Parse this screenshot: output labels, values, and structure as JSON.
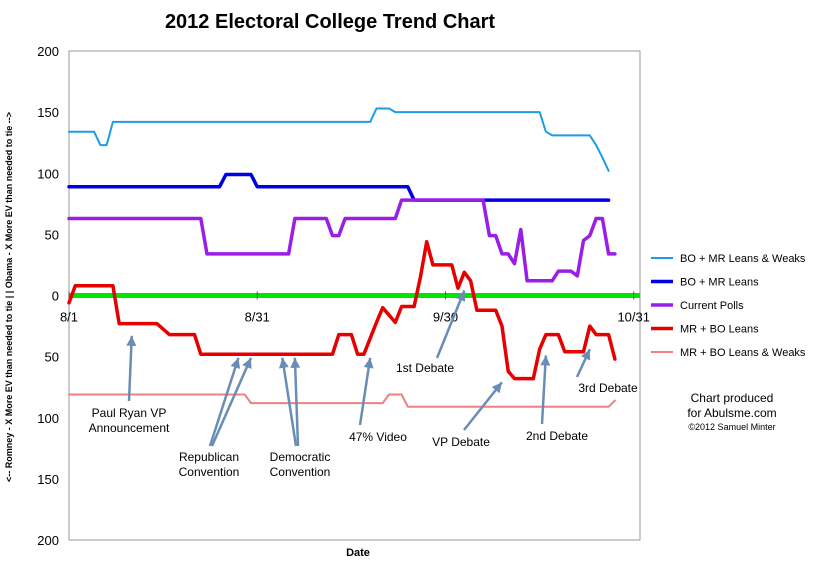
{
  "chart_data": {
    "type": "line",
    "title": "2012 Electoral College Trend Chart",
    "xlabel": "Date",
    "ylabel": "<-- Romney - X More EV than needed to tie | | Obama - X More EV than needed to tie -->",
    "x_ticks": [
      {
        "day": 0,
        "label": "8/1"
      },
      {
        "day": 30,
        "label": "8/31"
      },
      {
        "day": 60,
        "label": "9/30"
      },
      {
        "day": 90,
        "label": "10/31"
      }
    ],
    "xlim": [
      0,
      91
    ],
    "ylim": [
      -200,
      200
    ],
    "y_ticks": [
      {
        "value": 200,
        "label": "200"
      },
      {
        "value": 150,
        "label": "150"
      },
      {
        "value": 100,
        "label": "100"
      },
      {
        "value": 50,
        "label": "50"
      },
      {
        "value": 0,
        "label": "0"
      },
      {
        "value": -50,
        "label": "50"
      },
      {
        "value": -100,
        "label": "100"
      },
      {
        "value": -150,
        "label": "150"
      },
      {
        "value": -200,
        "label": "200"
      }
    ],
    "zero_line_color": "#00e600",
    "legend_position": "right",
    "series": [
      {
        "name": "BO + MR Leans & Weaks",
        "color": "#1e9be6",
        "points": [
          [
            0,
            134
          ],
          [
            4,
            134
          ],
          [
            5,
            123
          ],
          [
            6,
            123
          ],
          [
            7,
            142
          ],
          [
            48,
            142
          ],
          [
            49,
            153
          ],
          [
            51,
            153
          ],
          [
            52,
            150
          ],
          [
            75,
            150
          ],
          [
            76,
            134
          ],
          [
            77,
            131
          ],
          [
            83,
            131
          ],
          [
            84,
            123
          ],
          [
            85,
            113
          ],
          [
            86,
            102
          ]
        ]
      },
      {
        "name": "BO + MR Leans",
        "color": "#0000e6",
        "points": [
          [
            0,
            89
          ],
          [
            24,
            89
          ],
          [
            25,
            99
          ],
          [
            29,
            99
          ],
          [
            30,
            89
          ],
          [
            54,
            89
          ],
          [
            55,
            78
          ],
          [
            86,
            78
          ]
        ]
      },
      {
        "name": "Current Polls",
        "color": "#9b1ee6",
        "points": [
          [
            0,
            63
          ],
          [
            21,
            63
          ],
          [
            22,
            34
          ],
          [
            35,
            34
          ],
          [
            36,
            63
          ],
          [
            41,
            63
          ],
          [
            42,
            49
          ],
          [
            43,
            49
          ],
          [
            44,
            63
          ],
          [
            52,
            63
          ],
          [
            53,
            78
          ],
          [
            66,
            78
          ],
          [
            67,
            49
          ],
          [
            68,
            49
          ],
          [
            69,
            34
          ],
          [
            70,
            34
          ],
          [
            71,
            26
          ],
          [
            72,
            54
          ],
          [
            73,
            12
          ],
          [
            77,
            12
          ],
          [
            78,
            20
          ],
          [
            80,
            20
          ],
          [
            81,
            16
          ],
          [
            82,
            45
          ],
          [
            83,
            49
          ],
          [
            84,
            63
          ],
          [
            85,
            63
          ],
          [
            86,
            34
          ],
          [
            87,
            34
          ]
        ]
      },
      {
        "name": "MR + BO Leans",
        "color": "#e60000",
        "points": [
          [
            0,
            -6
          ],
          [
            1,
            8
          ],
          [
            7,
            8
          ],
          [
            8,
            -23
          ],
          [
            14,
            -23
          ],
          [
            16,
            -32
          ],
          [
            20,
            -32
          ],
          [
            21,
            -48
          ],
          [
            42,
            -48
          ],
          [
            43,
            -32
          ],
          [
            45,
            -32
          ],
          [
            46,
            -48
          ],
          [
            47,
            -48
          ],
          [
            49,
            -22
          ],
          [
            50,
            -10
          ],
          [
            52,
            -22
          ],
          [
            53,
            -9
          ],
          [
            55,
            -9
          ],
          [
            56,
            15
          ],
          [
            57,
            44
          ],
          [
            58,
            25
          ],
          [
            61,
            25
          ],
          [
            62,
            6
          ],
          [
            63,
            19
          ],
          [
            64,
            12
          ],
          [
            65,
            -12
          ],
          [
            68,
            -12
          ],
          [
            69,
            -25
          ],
          [
            70,
            -62
          ],
          [
            71,
            -68
          ],
          [
            74,
            -68
          ],
          [
            75,
            -44
          ],
          [
            76,
            -32
          ],
          [
            78,
            -32
          ],
          [
            79,
            -46
          ],
          [
            82,
            -46
          ],
          [
            83,
            -25
          ],
          [
            84,
            -32
          ],
          [
            86,
            -32
          ],
          [
            87,
            -52
          ]
        ]
      },
      {
        "name": "MR + BO Leans & Weaks",
        "color": "#f08080",
        "points": [
          [
            0,
            -81
          ],
          [
            28,
            -81
          ],
          [
            29,
            -88
          ],
          [
            50,
            -88
          ],
          [
            51,
            -81
          ],
          [
            53,
            -81
          ],
          [
            54,
            -91
          ],
          [
            86,
            -91
          ],
          [
            87,
            -86
          ]
        ]
      }
    ],
    "annotations": [
      {
        "label_lines": [
          "Paul Ryan VP",
          "Announcement"
        ],
        "arrows_to": [
          [
            10,
            -33
          ]
        ]
      },
      {
        "label_lines": [
          "Republican",
          "Convention"
        ],
        "arrows_to": [
          [
            27,
            -51
          ],
          [
            29,
            -51
          ]
        ]
      },
      {
        "label_lines": [
          "Democratic",
          "Convention"
        ],
        "arrows_to": [
          [
            34,
            -51
          ],
          [
            36,
            -51
          ]
        ]
      },
      {
        "label_lines": [
          "47% Video"
        ],
        "arrows_to": [
          [
            48,
            -51
          ]
        ]
      },
      {
        "label_lines": [
          "1st Debate"
        ],
        "arrows_to": [
          [
            63,
            4
          ]
        ]
      },
      {
        "label_lines": [
          "VP Debate"
        ],
        "arrows_to": [
          [
            69,
            -71
          ]
        ]
      },
      {
        "label_lines": [
          "2nd Debate"
        ],
        "arrows_to": [
          [
            76,
            -49
          ]
        ]
      },
      {
        "label_lines": [
          "3rd Debate"
        ],
        "arrows_to": [
          [
            83,
            -44
          ]
        ]
      }
    ]
  },
  "credit": {
    "line1": "Chart produced",
    "line2": "for Abulsme.com",
    "line3": "©2012 Samuel Minter"
  }
}
